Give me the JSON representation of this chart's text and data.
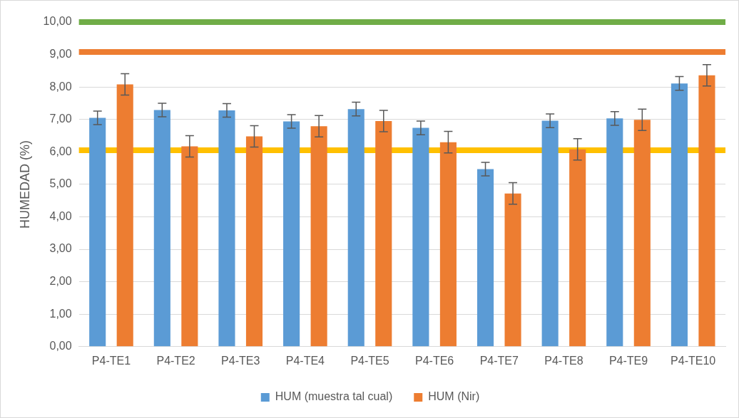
{
  "chart_data": {
    "type": "bar",
    "ylabel": "HUMEDAD (%)",
    "categories": [
      "P4-TE1",
      "P4-TE2",
      "P4-TE3",
      "P4-TE4",
      "P4-TE5",
      "P4-TE6",
      "P4-TE7",
      "P4-TE8",
      "P4-TE9",
      "P4-TE10"
    ],
    "series": [
      {
        "name": "HUM (muestra tal cual)",
        "color": "#5b9bd5",
        "values": [
          7.05,
          7.29,
          7.28,
          6.94,
          7.32,
          6.74,
          5.47,
          6.96,
          7.03,
          8.11
        ],
        "errors": [
          0.21,
          0.21,
          0.21,
          0.21,
          0.21,
          0.21,
          0.21,
          0.21,
          0.21,
          0.21
        ]
      },
      {
        "name": "HUM (Nir)",
        "color": "#ed7d31",
        "values": [
          8.08,
          6.17,
          6.48,
          6.79,
          6.95,
          6.3,
          4.72,
          6.08,
          6.99,
          8.36
        ],
        "errors": [
          0.33,
          0.33,
          0.33,
          0.33,
          0.33,
          0.33,
          0.33,
          0.33,
          0.33,
          0.33
        ]
      }
    ],
    "ylim": [
      0,
      10
    ],
    "yticks": [
      {
        "value": 0,
        "label": "0,00"
      },
      {
        "value": 1,
        "label": "1,00"
      },
      {
        "value": 2,
        "label": "2,00"
      },
      {
        "value": 3,
        "label": "3,00"
      },
      {
        "value": 4,
        "label": "4,00"
      },
      {
        "value": 5,
        "label": "5,00"
      },
      {
        "value": 6,
        "label": "6,00"
      },
      {
        "value": 7,
        "label": "7,00"
      },
      {
        "value": 8,
        "label": "8,00"
      },
      {
        "value": 9,
        "label": "9,00"
      },
      {
        "value": 10,
        "label": "10,00"
      }
    ],
    "ref_lines": [
      {
        "axis": "y",
        "value": 10,
        "color": "#70ad47"
      },
      {
        "axis": "y",
        "value": 9.08,
        "color": "#ed7d31"
      },
      {
        "axis": "y",
        "value": 6.05,
        "color": "#ffc000"
      }
    ],
    "grid": "y",
    "legend": "bottom"
  }
}
